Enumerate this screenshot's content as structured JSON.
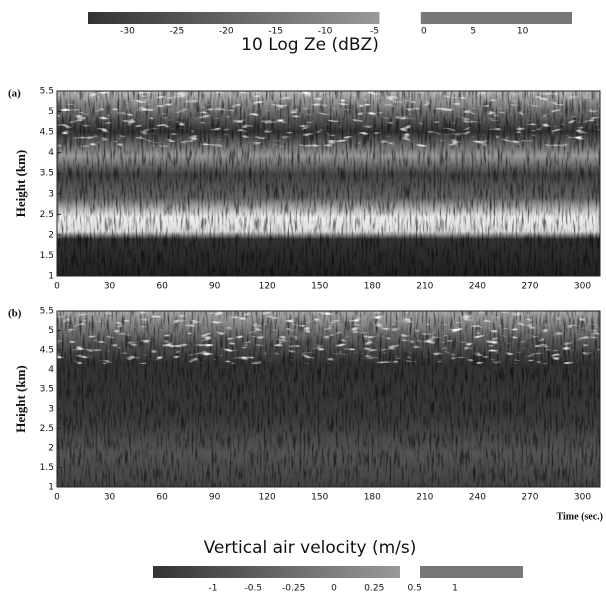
{
  "chart_data": [
    {
      "type": "heatmap",
      "panel_label": "(a)",
      "ylabel": "Height (km)",
      "xlim": [
        0,
        310
      ],
      "xticks": [
        0,
        30,
        60,
        90,
        120,
        150,
        180,
        210,
        240,
        270,
        300
      ],
      "ylim": [
        1,
        5.5
      ],
      "yticks": [
        1,
        1.5,
        2,
        2.5,
        3,
        3.5,
        4,
        4.5,
        5,
        5.5
      ],
      "colorbar": {
        "title": "10 Log Ze (dBZ)",
        "lim": [
          -34,
          15
        ],
        "ticks": [
          -30,
          -25,
          -20,
          -15,
          -10,
          -5,
          0,
          5,
          10
        ]
      }
    },
    {
      "type": "heatmap",
      "panel_label": "(b)",
      "ylabel": "Height (km)",
      "xlabel": "Time (sec.)",
      "xlim": [
        0,
        310
      ],
      "xticks": [
        0,
        30,
        60,
        90,
        120,
        150,
        180,
        210,
        240,
        270,
        300
      ],
      "ylim": [
        1,
        5.5
      ],
      "yticks": [
        1,
        1.5,
        2,
        2.5,
        3,
        3.5,
        4,
        4.5,
        5,
        5.5
      ],
      "colorbar": {
        "title": "Vertical air velocity (m/s)",
        "ticks": [
          -1,
          -0.5,
          -0.25,
          0,
          0.25,
          0.5,
          1
        ]
      }
    }
  ]
}
